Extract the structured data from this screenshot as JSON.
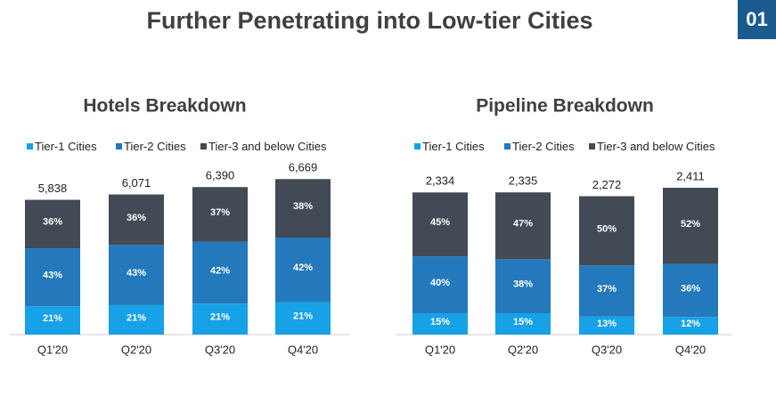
{
  "header": {
    "title": "Further Penetrating into Low-tier Cities",
    "badge": "01"
  },
  "chart_data": [
    {
      "type": "stacked_bar",
      "title": "Hotels Breakdown",
      "categories": [
        "Q1'20",
        "Q2'20",
        "Q3'20",
        "Q4'20"
      ],
      "series": [
        {
          "name": "Tier-1 Cities",
          "color": "#17a1e6",
          "values": [
            21,
            21,
            21,
            21
          ],
          "value_labels": [
            "21%",
            "21%",
            "21%",
            "21%"
          ]
        },
        {
          "name": "Tier-2 Cities",
          "color": "#2379bb",
          "values": [
            43,
            43,
            42,
            42
          ],
          "value_labels": [
            "43%",
            "43%",
            "42%",
            "42%"
          ]
        },
        {
          "name": "Tier-3 and below Cities",
          "color": "#414a55",
          "values": [
            36,
            36,
            37,
            38
          ],
          "value_labels": [
            "36%",
            "36%",
            "37%",
            "38%"
          ]
        }
      ],
      "totals": {
        "values": [
          5838,
          6071,
          6390,
          6669
        ],
        "value_labels": [
          "5,838",
          "6,071",
          "6,390",
          "6,669"
        ]
      }
    },
    {
      "type": "stacked_bar",
      "title": "Pipeline Breakdown",
      "categories": [
        "Q1'20",
        "Q2'20",
        "Q3'20",
        "Q4'20"
      ],
      "series": [
        {
          "name": "Tier-1 Cities",
          "color": "#17a1e6",
          "values": [
            15,
            15,
            13,
            12
          ],
          "value_labels": [
            "15%",
            "15%",
            "13%",
            "12%"
          ]
        },
        {
          "name": "Tier-2 Cities",
          "color": "#2379bb",
          "values": [
            40,
            38,
            37,
            36
          ],
          "value_labels": [
            "40%",
            "38%",
            "37%",
            "36%"
          ]
        },
        {
          "name": "Tier-3 and below Cities",
          "color": "#414a55",
          "values": [
            45,
            47,
            50,
            52
          ],
          "value_labels": [
            "45%",
            "47%",
            "50%",
            "52%"
          ]
        }
      ],
      "totals": {
        "values": [
          2334,
          2335,
          2272,
          2411
        ],
        "value_labels": [
          "2,334",
          "2,335",
          "2,272",
          "2,411"
        ]
      }
    }
  ]
}
